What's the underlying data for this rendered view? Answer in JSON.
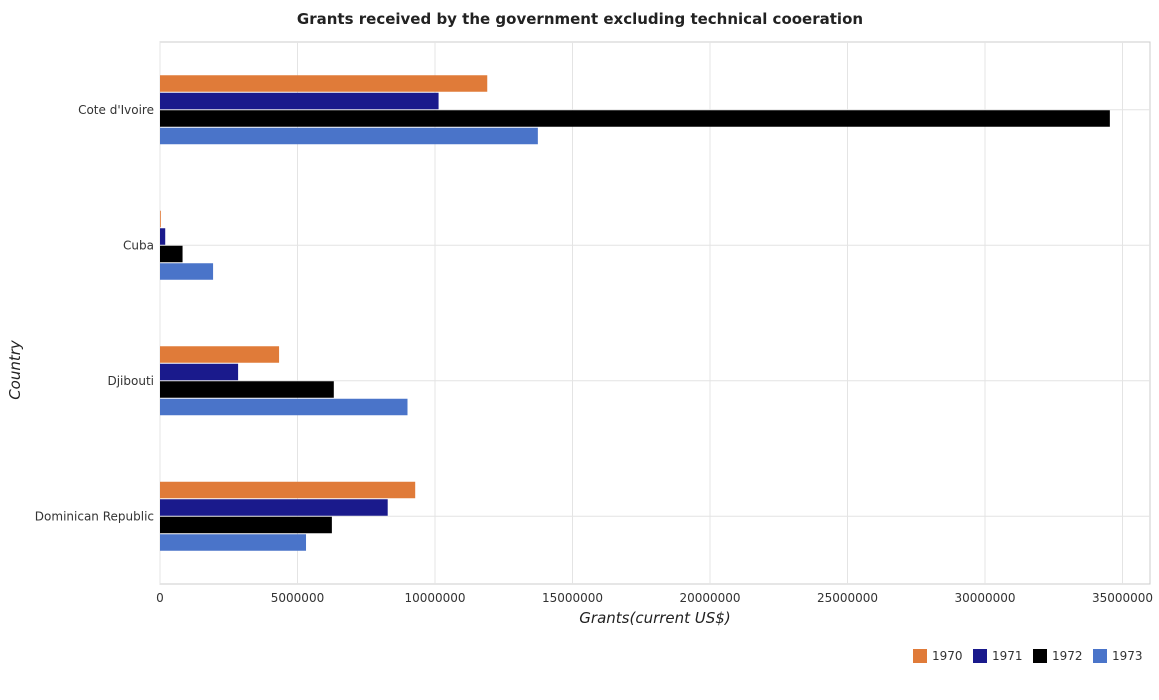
{
  "chart_data": {
    "type": "bar",
    "orientation": "horizontal",
    "title": "Grants received by the government excluding technical cooeration",
    "xlabel": "Grants(current US$)",
    "ylabel": "Country",
    "xlim": [
      0,
      36000000
    ],
    "x_ticks": [
      0,
      5000000,
      10000000,
      15000000,
      20000000,
      25000000,
      30000000,
      35000000
    ],
    "x_tick_labels": [
      "0",
      "5000000",
      "10000000",
      "15000000",
      "20000000",
      "25000000",
      "30000000",
      "35000000"
    ],
    "categories": [
      "Cote d'Ivoire",
      "Cuba",
      "Djibouti",
      "Dominican Republic"
    ],
    "series": [
      {
        "name": "1970",
        "color": "#e07b39",
        "values": [
          11900000,
          30000,
          4330000,
          9280000
        ]
      },
      {
        "name": "1971",
        "color": "#1a1a8c",
        "values": [
          10130000,
          190000,
          2840000,
          8280000
        ]
      },
      {
        "name": "1972",
        "color": "#000000",
        "values": [
          34540000,
          820000,
          6320000,
          6250000
        ]
      },
      {
        "name": "1973",
        "color": "#4a74c9",
        "values": [
          13740000,
          1930000,
          9000000,
          5310000
        ]
      }
    ],
    "grid": true,
    "legend_position": "bottom-right"
  }
}
